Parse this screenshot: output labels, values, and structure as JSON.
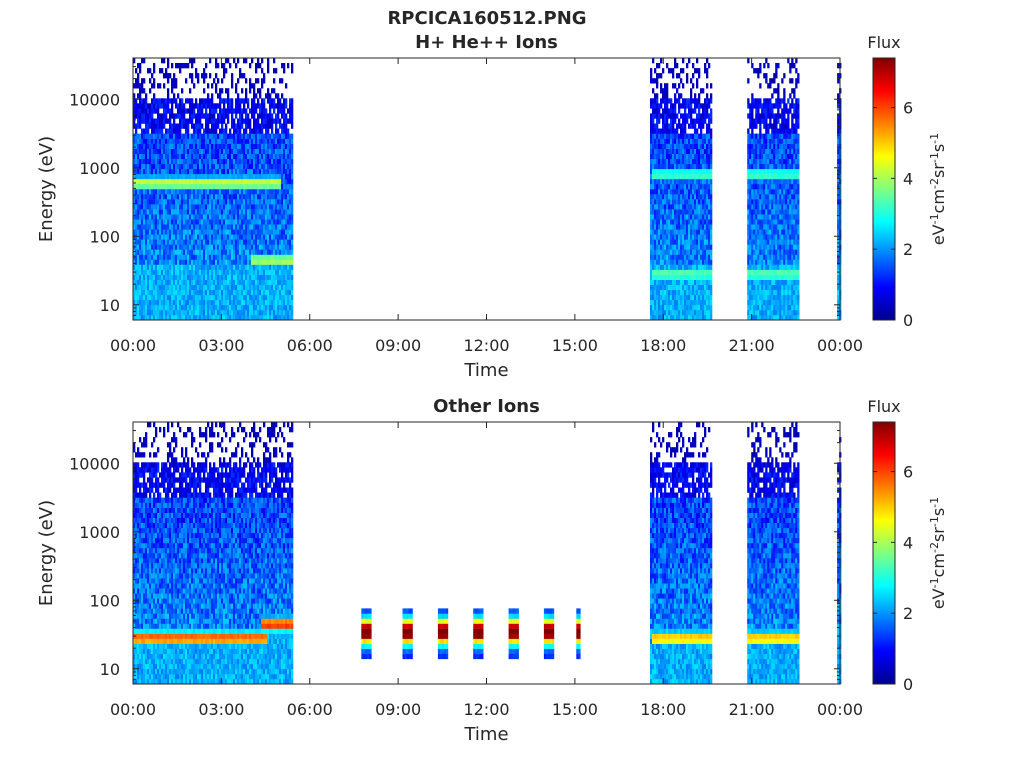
{
  "figure_title": "RPCICA160512.PNG",
  "chart_data": [
    {
      "type": "heatmap",
      "title": "H+ He++ Ions",
      "xlabel": "Time",
      "ylabel": "Energy (eV)",
      "x_ticks": [
        "00:00",
        "03:00",
        "06:00",
        "09:00",
        "12:00",
        "15:00",
        "18:00",
        "21:00",
        "00:00"
      ],
      "xlim_hours": [
        0,
        24
      ],
      "y_scale": "log",
      "ylim": [
        6,
        40000
      ],
      "y_ticks": [
        10,
        100,
        1000,
        10000
      ],
      "y_tick_labels": [
        "10",
        "100",
        "1000",
        "10000"
      ],
      "colorbar": {
        "label": "Flux",
        "units_base": "eV",
        "units_exp1": "-1",
        "units_cm": "cm",
        "units_exp2": "-2",
        "units_sr": "sr",
        "units_exp3": "-1",
        "units_s": "s",
        "units_exp4": "-1",
        "range": [
          0,
          7.4
        ],
        "ticks": [
          0,
          2,
          4,
          6
        ],
        "tick_labels": [
          "0",
          "2",
          "4",
          "6"
        ]
      },
      "data_segments_hours": [
        [
          0,
          5.4
        ],
        [
          17.55,
          19.65
        ],
        [
          20.85,
          22.6
        ],
        [
          23.9,
          24
        ]
      ],
      "features": [
        {
          "start": 0,
          "end": 5.0,
          "energy": 600,
          "flux": 4.2
        },
        {
          "start": 4.0,
          "end": 5.5,
          "energy": 45,
          "flux": 4.0
        },
        {
          "start": 17.6,
          "end": 22.8,
          "energy": 800,
          "flux": 3.2
        },
        {
          "start": 17.6,
          "end": 23.0,
          "energy": 28,
          "flux": 3.4
        }
      ]
    },
    {
      "type": "heatmap",
      "title": "Other Ions",
      "xlabel": "Time",
      "ylabel": "Energy (eV)",
      "x_ticks": [
        "00:00",
        "03:00",
        "06:00",
        "09:00",
        "12:00",
        "15:00",
        "18:00",
        "21:00",
        "00:00"
      ],
      "xlim_hours": [
        0,
        24
      ],
      "y_scale": "log",
      "ylim": [
        6,
        40000
      ],
      "y_ticks": [
        10,
        100,
        1000,
        10000
      ],
      "y_tick_labels": [
        "10",
        "100",
        "1000",
        "10000"
      ],
      "colorbar": {
        "label": "Flux",
        "units_base": "eV",
        "units_exp1": "-1",
        "units_cm": "cm",
        "units_exp2": "-2",
        "units_sr": "sr",
        "units_exp3": "-1",
        "units_s": "s",
        "units_exp4": "-1",
        "range": [
          0,
          7.4
        ],
        "ticks": [
          0,
          2,
          4,
          6
        ],
        "tick_labels": [
          "0",
          "2",
          "4",
          "6"
        ]
      },
      "data_segments_hours": [
        [
          0,
          5.4
        ],
        [
          17.55,
          19.65
        ],
        [
          20.85,
          22.6
        ],
        [
          23.9,
          24
        ]
      ],
      "features": [
        {
          "start": 0,
          "end": 4.5,
          "energy": 28,
          "flux": 6.0
        },
        {
          "start": 4.3,
          "end": 5.5,
          "energy": 45,
          "flux": 6.3
        },
        {
          "start": 17.6,
          "end": 22.9,
          "energy": 28,
          "flux": 5.2
        }
      ],
      "bursts_hours": [
        7.9,
        9.3,
        10.5,
        11.7,
        12.9,
        14.1,
        15.1
      ],
      "burst_peak_energy": 35,
      "burst_peak_flux": 7.0
    }
  ]
}
